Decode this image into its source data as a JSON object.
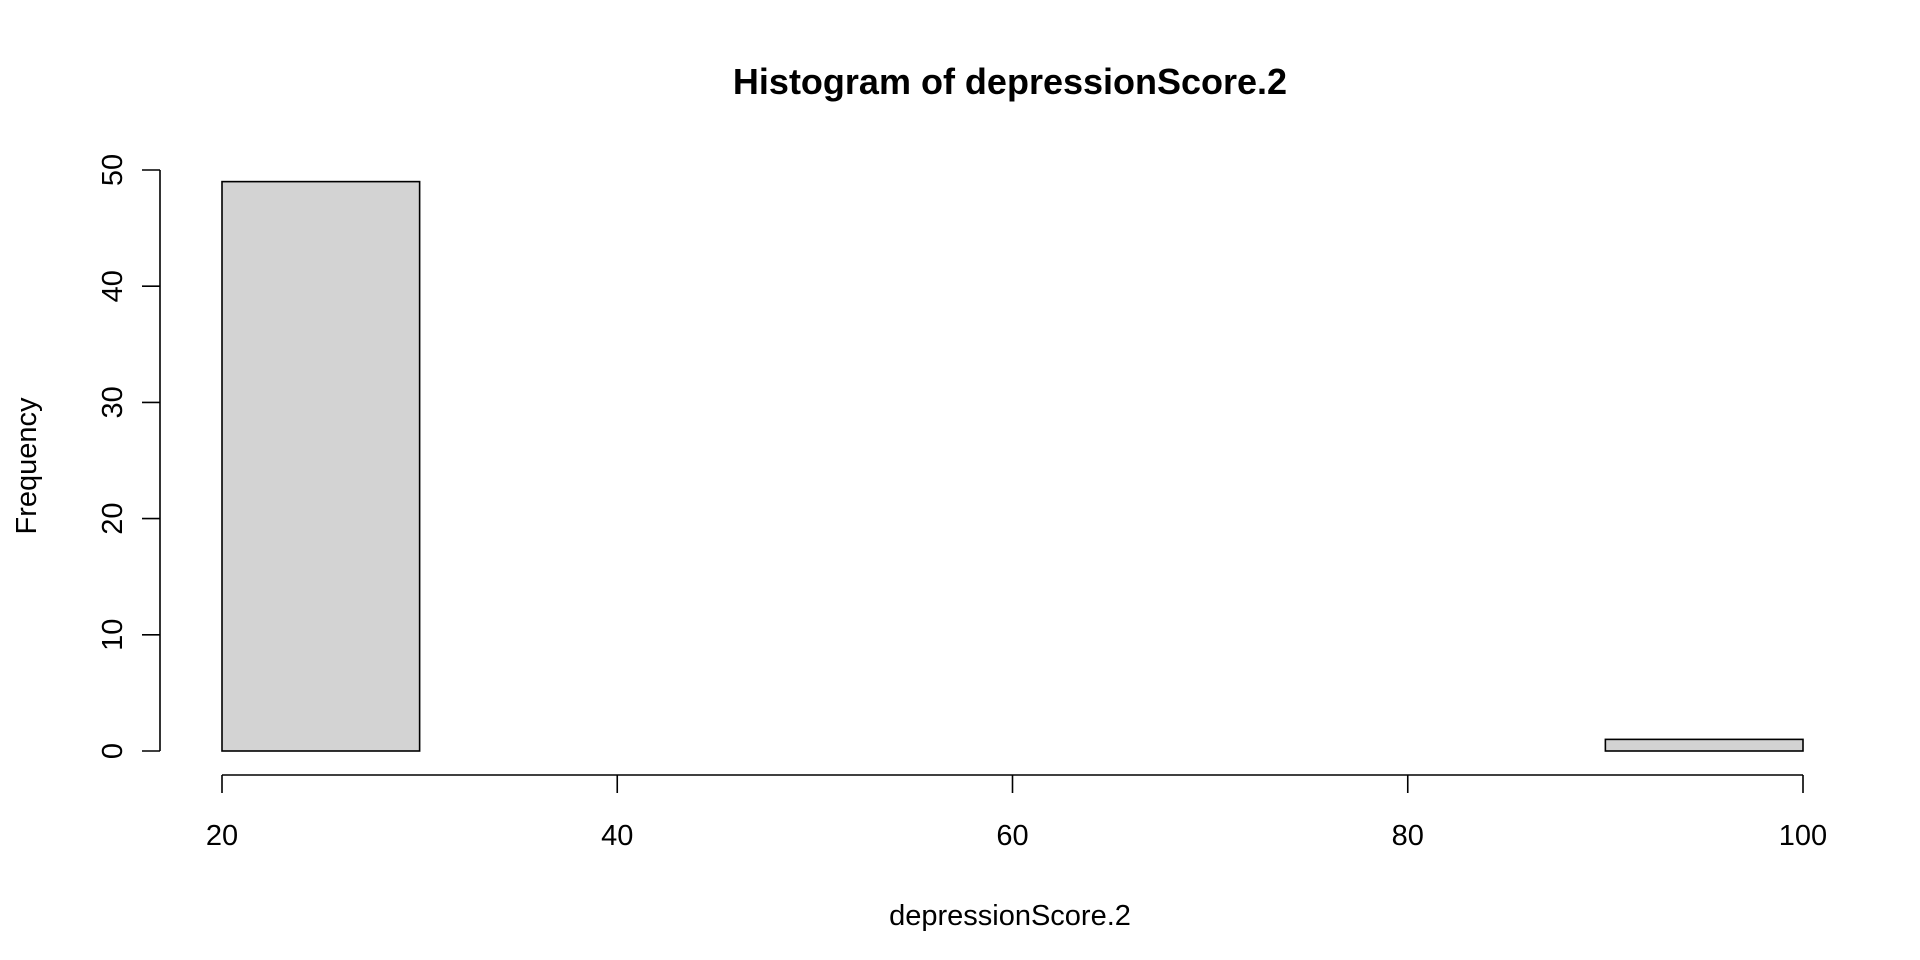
{
  "chart_data": {
    "type": "bar",
    "title": "Histogram of depressionScore.2",
    "xlabel": "depressionScore.2",
    "ylabel": "Frequency",
    "bins": [
      {
        "x0": 20,
        "x1": 30,
        "count": 49
      },
      {
        "x0": 30,
        "x1": 40,
        "count": 0
      },
      {
        "x0": 40,
        "x1": 50,
        "count": 0
      },
      {
        "x0": 50,
        "x1": 60,
        "count": 0
      },
      {
        "x0": 60,
        "x1": 70,
        "count": 0
      },
      {
        "x0": 70,
        "x1": 80,
        "count": 0
      },
      {
        "x0": 80,
        "x1": 90,
        "count": 0
      },
      {
        "x0": 90,
        "x1": 100,
        "count": 1
      }
    ],
    "xlim": [
      20,
      100
    ],
    "ylim": [
      0,
      50
    ],
    "x_ticks": [
      "20",
      "40",
      "60",
      "80",
      "100"
    ],
    "y_ticks": [
      "0",
      "10",
      "20",
      "30",
      "40",
      "50"
    ],
    "bar_fill": "#d3d3d3",
    "bar_stroke": "#000000",
    "grid": false,
    "legend": "none"
  }
}
